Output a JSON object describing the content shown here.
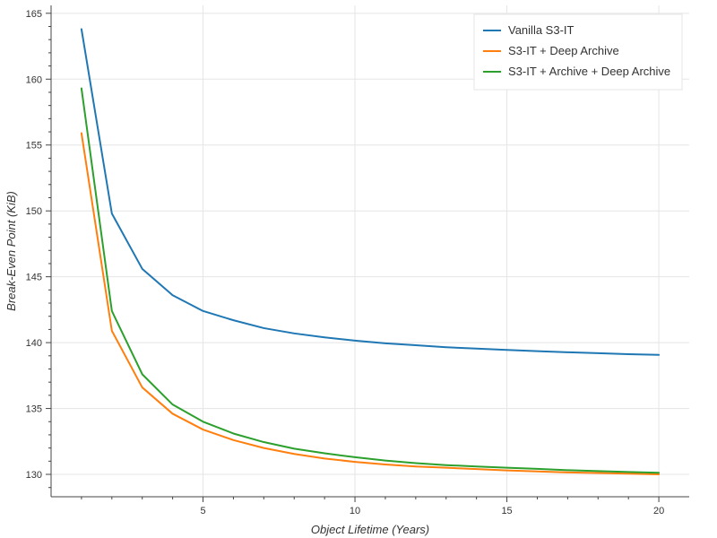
{
  "chart_data": {
    "type": "line",
    "title": "",
    "xlabel": "Object Lifetime (Years)",
    "ylabel": "Break-Even Point (KiB)",
    "xlim": [
      0,
      21
    ],
    "ylim": [
      128.3,
      165.6
    ],
    "xticks": [
      5,
      10,
      15,
      20
    ],
    "yticks": [
      130,
      135,
      140,
      145,
      150,
      155,
      160,
      165
    ],
    "grid": true,
    "legend_position": "top-right",
    "x": [
      1,
      2,
      3,
      4,
      5,
      6,
      7,
      8,
      9,
      10,
      11,
      12,
      13,
      14,
      15,
      16,
      17,
      18,
      19,
      20
    ],
    "series": [
      {
        "name": "Vanilla S3-IT",
        "color": "#1f77b4",
        "values": [
          163.8,
          149.8,
          145.6,
          143.6,
          142.4,
          141.7,
          141.1,
          140.7,
          140.4,
          140.15,
          139.95,
          139.8,
          139.65,
          139.55,
          139.45,
          139.35,
          139.27,
          139.2,
          139.12,
          139.07
        ]
      },
      {
        "name": "S3-IT + Deep Archive",
        "color": "#ff7f0e",
        "values": [
          155.9,
          140.9,
          136.6,
          134.6,
          133.4,
          132.6,
          132.0,
          131.55,
          131.2,
          130.95,
          130.75,
          130.6,
          130.5,
          130.4,
          130.3,
          130.22,
          130.15,
          130.1,
          130.05,
          130.0
        ]
      },
      {
        "name": "S3-IT + Archive + Deep Archive",
        "color": "#2ca02c",
        "values": [
          159.3,
          142.4,
          137.6,
          135.3,
          134.0,
          133.1,
          132.45,
          131.95,
          131.6,
          131.3,
          131.05,
          130.85,
          130.7,
          130.6,
          130.5,
          130.42,
          130.32,
          130.25,
          130.18,
          130.12
        ]
      }
    ]
  }
}
